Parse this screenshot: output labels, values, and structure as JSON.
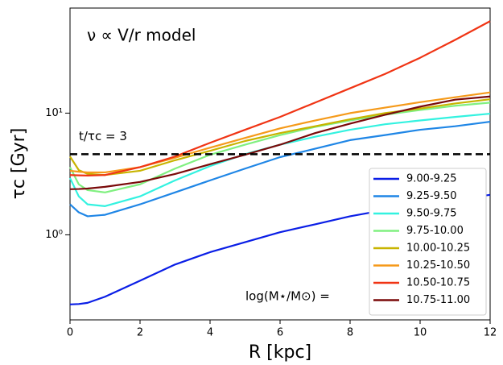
{
  "chart_data": {
    "type": "line",
    "annotation": "ν ∝ V/r model",
    "xlabel": "R [kpc]",
    "ylabel": "τc [Gyr]",
    "legend_title": "log(M⋆/M⊙) =",
    "hline": {
      "value": 4.6,
      "label": "t/τc = 3",
      "color": "#000000"
    },
    "log_y": true,
    "legend": "lower right",
    "xlim": [
      0,
      12
    ],
    "xticks": [
      0,
      2,
      4,
      6,
      8,
      10,
      12
    ],
    "ylim": [
      0.2,
      73
    ],
    "yticks": [
      {
        "value": 1,
        "label": "10⁰"
      },
      {
        "value": 10,
        "label": "10¹"
      }
    ],
    "x": [
      0,
      0.25,
      0.5,
      1,
      2,
      3,
      4,
      5,
      6,
      7,
      8,
      9,
      10,
      11,
      12
    ],
    "series": [
      {
        "name": "9.00-9.25",
        "color": "#0a1ee6",
        "values": [
          0.268,
          0.27,
          0.276,
          0.31,
          0.42,
          0.57,
          0.72,
          0.87,
          1.05,
          1.22,
          1.42,
          1.6,
          1.78,
          1.95,
          2.13
        ]
      },
      {
        "name": "9.25-9.50",
        "color": "#1f86e6",
        "values": [
          1.78,
          1.53,
          1.42,
          1.46,
          1.78,
          2.23,
          2.8,
          3.5,
          4.35,
          5.1,
          6.0,
          6.6,
          7.3,
          7.8,
          8.5
        ]
      },
      {
        "name": "9.50-9.75",
        "color": "#33f2e0",
        "values": [
          2.93,
          2.07,
          1.78,
          1.72,
          2.07,
          2.8,
          3.67,
          4.6,
          5.5,
          6.4,
          7.3,
          8.1,
          8.7,
          9.3,
          9.9
        ]
      },
      {
        "name": "9.75-10.00",
        "color": "#80f080",
        "values": [
          3.6,
          2.6,
          2.33,
          2.23,
          2.6,
          3.5,
          4.55,
          5.5,
          6.6,
          7.7,
          8.7,
          9.7,
          10.6,
          11.5,
          12.2
        ]
      },
      {
        "name": "10.00-10.25",
        "color": "#c8b400",
        "values": [
          4.4,
          3.4,
          3.17,
          3.1,
          3.36,
          4.1,
          4.9,
          5.9,
          6.85,
          7.8,
          8.9,
          10,
          10.9,
          12,
          13
        ]
      },
      {
        "name": "10.25-10.50",
        "color": "#f59a1a",
        "values": [
          3.36,
          3.3,
          3.26,
          3.26,
          3.6,
          4.3,
          5.2,
          6.25,
          7.5,
          8.7,
          10,
          11.1,
          12.3,
          13.5,
          14.8
        ]
      },
      {
        "name": "10.50-10.75",
        "color": "#f03414",
        "values": [
          3.1,
          3.08,
          3.07,
          3.1,
          3.6,
          4.4,
          5.7,
          7.3,
          9.3,
          12.2,
          16,
          21,
          28.5,
          40,
          57
        ]
      },
      {
        "name": "10.75-11.00",
        "color": "#7a0a0a",
        "values": [
          2.37,
          2.38,
          2.4,
          2.48,
          2.72,
          3.16,
          3.8,
          4.55,
          5.5,
          6.85,
          8.2,
          9.7,
          11.3,
          12.9,
          13.7
        ]
      }
    ]
  }
}
